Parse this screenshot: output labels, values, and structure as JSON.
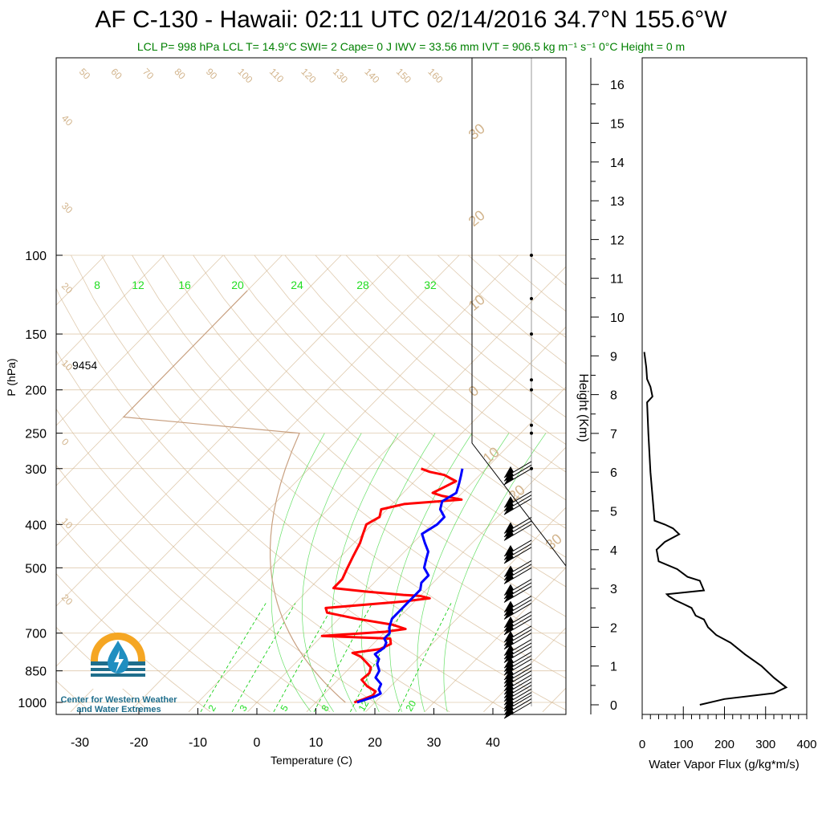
{
  "header": {
    "title": "AF C-130 - Hawaii: 02:11 UTC 02/14/2016  34.7°N 155.6°W",
    "subtitle": "LCL P= 998 hPa  LCL T= 14.9°C  SWI= 2  Cape= 0 J  IWV = 33.56 mm  IVT = 906.5 kg m⁻¹ s⁻¹  0°C Height = 0 m"
  },
  "logo": {
    "text_line1": "Center for Western Weather",
    "text_line2": "and Water Extremes",
    "icon": "water-drop-sun-icon"
  },
  "colors": {
    "temperature": "#ff0000",
    "dewpoint": "#0000ff",
    "isotherm": "#d2b48c",
    "mixing_ratio": "#00cc00",
    "flux": "#000000",
    "subtitle": "#008000"
  },
  "chart_data": [
    {
      "type": "line",
      "subtype": "skew-t log-p",
      "xlabel": "Temperature (C)",
      "ylabel": "P (hPa)",
      "ylabel2": "Height (Km)",
      "xlim": [
        -35,
        50
      ],
      "ylim": [
        1050,
        100
      ],
      "x_ticks": [
        "-30",
        "-20",
        "-10",
        "0",
        "10",
        "20",
        "30",
        "40"
      ],
      "y_ticks": [
        "100",
        "150",
        "200",
        "250",
        "300",
        "400",
        "500",
        "700",
        "850",
        "1000"
      ],
      "height_ticks": [
        "0",
        "1",
        "2",
        "3",
        "4",
        "5",
        "6",
        "7",
        "8",
        "9",
        "10",
        "11",
        "12",
        "13",
        "14",
        "15",
        "16"
      ],
      "height_annotation": "9454",
      "isotherm_labels": [
        "50",
        "60",
        "70",
        "80",
        "90",
        "100",
        "110",
        "120",
        "130",
        "140",
        "150",
        "160"
      ],
      "adiabat_labels": [
        "40",
        "30",
        "20",
        "10",
        "0",
        "10",
        "20"
      ],
      "right_labels": [
        "30",
        "20",
        "10",
        "0",
        "10",
        "20",
        "30"
      ],
      "mixing_ratio_labels_top": [
        "8",
        "12",
        "16",
        "20",
        "24",
        "28",
        "32"
      ],
      "mixing_ratio_labels_bottom": [
        "2",
        "3",
        "5",
        "8",
        "12",
        "20"
      ],
      "series": [
        {
          "key": "temperature",
          "points": [
            [
              16.5,
              1000
            ],
            [
              17.5,
              985
            ],
            [
              18.5,
              965
            ],
            [
              18.3,
              945
            ],
            [
              16,
              920
            ],
            [
              14,
              890
            ],
            [
              14.2,
              860
            ],
            [
              13.5,
              835
            ],
            [
              12,
              815
            ],
            [
              10,
              790
            ],
            [
              8,
              775
            ],
            [
              12,
              760
            ],
            [
              13,
              740
            ],
            [
              12,
              720
            ],
            [
              0,
              710
            ],
            [
              10,
              695
            ],
            [
              13,
              685
            ],
            [
              10,
              670
            ],
            [
              3,
              650
            ],
            [
              -3,
              630
            ],
            [
              -4,
              615
            ],
            [
              2,
              605
            ],
            [
              8,
              595
            ],
            [
              12,
              585
            ],
            [
              10,
              578
            ],
            [
              7,
              575
            ],
            [
              0,
              565
            ],
            [
              -6,
              555
            ],
            [
              -6,
              530
            ],
            [
              -7,
              500
            ],
            [
              -8,
              470
            ],
            [
              -9,
              440
            ],
            [
              -10,
              420
            ],
            [
              -11,
              400
            ],
            [
              -10,
              385
            ],
            [
              -11,
              370
            ],
            [
              -8,
              360
            ],
            [
              1,
              352
            ],
            [
              -3,
              345
            ],
            [
              -5,
              340
            ],
            [
              -4,
              330
            ],
            [
              -3,
              320
            ],
            [
              -6,
              310
            ],
            [
              -9,
              305
            ],
            [
              -11,
              300
            ]
          ]
        },
        {
          "key": "dewpoint",
          "points": [
            [
              17,
              1000
            ],
            [
              18,
              985
            ],
            [
              19,
              970
            ],
            [
              19.5,
              955
            ],
            [
              18.5,
              935
            ],
            [
              18,
              910
            ],
            [
              16,
              880
            ],
            [
              15.5,
              850
            ],
            [
              14,
              820
            ],
            [
              13.5,
              800
            ],
            [
              12,
              780
            ],
            [
              12.5,
              755
            ],
            [
              12,
              735
            ],
            [
              11,
              720
            ],
            [
              11,
              700
            ],
            [
              10,
              680
            ],
            [
              9,
              650
            ],
            [
              9,
              620
            ],
            [
              9,
              600
            ],
            [
              9,
              580
            ],
            [
              9,
              560
            ],
            [
              8,
              540
            ],
            [
              8,
              520
            ],
            [
              6,
              500
            ],
            [
              5,
              480
            ],
            [
              4,
              460
            ],
            [
              2,
              440
            ],
            [
              0,
              420
            ],
            [
              1,
              400
            ],
            [
              1,
              385
            ],
            [
              -1,
              370
            ],
            [
              -2,
              355
            ],
            [
              -1,
              340
            ],
            [
              -2,
              325
            ],
            [
              -3,
              312
            ],
            [
              -4,
              300
            ]
          ]
        }
      ],
      "winds": [
        {
          "p": 1000,
          "speed": 25
        },
        {
          "p": 950,
          "speed": 25
        },
        {
          "p": 900,
          "speed": 25
        },
        {
          "p": 850,
          "speed": 25
        },
        {
          "p": 800,
          "speed": 25
        },
        {
          "p": 750,
          "speed": 25
        },
        {
          "p": 700,
          "speed": 25
        },
        {
          "p": 650,
          "speed": 25
        },
        {
          "p": 600,
          "speed": 25
        },
        {
          "p": 550,
          "speed": 25
        },
        {
          "p": 500,
          "speed": 25
        },
        {
          "p": 450,
          "speed": 25
        },
        {
          "p": 400,
          "speed": 25
        },
        {
          "p": 350,
          "speed": 25
        },
        {
          "p": 300,
          "speed": 25
        }
      ]
    },
    {
      "type": "line",
      "xlabel": "Water Vapor Flux (g/kg*m/s)",
      "xlim": [
        0,
        400
      ],
      "ylim": [
        0,
        16.5
      ],
      "x_ticks": [
        "0",
        "100",
        "200",
        "300",
        "400"
      ],
      "series": [
        {
          "key": "flux",
          "points": [
            [
              140,
              0
            ],
            [
              200,
              0.15
            ],
            [
              320,
              0.3
            ],
            [
              350,
              0.45
            ],
            [
              320,
              0.7
            ],
            [
              290,
              1.0
            ],
            [
              250,
              1.3
            ],
            [
              215,
              1.6
            ],
            [
              180,
              1.8
            ],
            [
              160,
              2.0
            ],
            [
              150,
              2.2
            ],
            [
              130,
              2.3
            ],
            [
              120,
              2.5
            ],
            [
              100,
              2.6
            ],
            [
              80,
              2.7
            ],
            [
              65,
              2.8
            ],
            [
              60,
              2.85
            ],
            [
              150,
              2.95
            ],
            [
              140,
              3.2
            ],
            [
              110,
              3.3
            ],
            [
              85,
              3.5
            ],
            [
              40,
              3.7
            ],
            [
              35,
              4.0
            ],
            [
              55,
              4.2
            ],
            [
              90,
              4.4
            ],
            [
              75,
              4.55
            ],
            [
              55,
              4.65
            ],
            [
              30,
              4.75
            ],
            [
              28,
              5.0
            ],
            [
              20,
              6.0
            ],
            [
              15,
              7.0
            ],
            [
              12,
              7.8
            ],
            [
              25,
              7.95
            ],
            [
              20,
              8.2
            ],
            [
              12,
              8.4
            ],
            [
              10,
              8.7
            ],
            [
              5,
              9.1
            ]
          ]
        }
      ]
    }
  ]
}
